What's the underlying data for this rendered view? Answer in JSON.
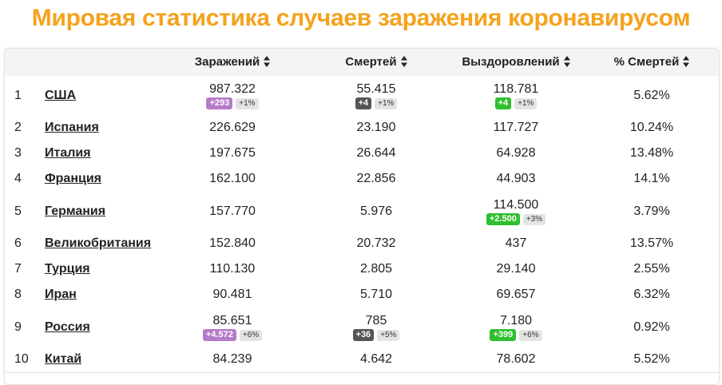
{
  "page": {
    "title": "Мировая статистика случаев заражения коронавирусом"
  },
  "colors": {
    "title": "#f5a21c",
    "infections_badge": "#b57bc8",
    "deaths_badge": "#555555",
    "recovered_badge": "#2fbf2f",
    "pct_badge": "#e4e4e4"
  },
  "table": {
    "columns": [
      {
        "label": "Заражений",
        "icon": "sort-icon"
      },
      {
        "label": "Смертей",
        "icon": "sort-icon"
      },
      {
        "label": "Выздоровлений",
        "icon": "sort-icon"
      },
      {
        "label": "% Смертей",
        "icon": "sort-icon"
      }
    ],
    "rows": [
      {
        "rank": "1",
        "country": "США",
        "infections": "987.322",
        "inf_delta": "+293",
        "inf_pct": "+1%",
        "deaths": "55.415",
        "dth_delta": "+4",
        "dth_pct": "+1%",
        "recovered": "118.781",
        "rec_delta": "+4",
        "rec_pct": "+1%",
        "death_rate": "5.62%"
      },
      {
        "rank": "2",
        "country": "Испания",
        "infections": "226.629",
        "deaths": "23.190",
        "recovered": "117.727",
        "death_rate": "10.24%"
      },
      {
        "rank": "3",
        "country": "Италия",
        "infections": "197.675",
        "deaths": "26.644",
        "recovered": "64.928",
        "death_rate": "13.48%"
      },
      {
        "rank": "4",
        "country": "Франция",
        "infections": "162.100",
        "deaths": "22.856",
        "recovered": "44.903",
        "death_rate": "14.1%"
      },
      {
        "rank": "5",
        "country": "Германия",
        "infections": "157.770",
        "deaths": "5.976",
        "recovered": "114.500",
        "rec_delta": "+2.500",
        "rec_pct": "+3%",
        "death_rate": "3.79%"
      },
      {
        "rank": "6",
        "country": "Великобритания",
        "infections": "152.840",
        "deaths": "20.732",
        "recovered": "437",
        "death_rate": "13.57%"
      },
      {
        "rank": "7",
        "country": "Турция",
        "infections": "110.130",
        "deaths": "2.805",
        "recovered": "29.140",
        "death_rate": "2.55%"
      },
      {
        "rank": "8",
        "country": "Иран",
        "infections": "90.481",
        "deaths": "5.710",
        "recovered": "69.657",
        "death_rate": "6.32%"
      },
      {
        "rank": "9",
        "country": "Россия",
        "infections": "85.651",
        "inf_delta": "+4.572",
        "inf_pct": "+6%",
        "deaths": "785",
        "dth_delta": "+36",
        "dth_pct": "+5%",
        "recovered": "7.180",
        "rec_delta": "+399",
        "rec_pct": "+6%",
        "death_rate": "0.92%"
      },
      {
        "rank": "10",
        "country": "Китай",
        "infections": "84.239",
        "deaths": "4.642",
        "recovered": "78.602",
        "death_rate": "5.52%"
      }
    ]
  }
}
